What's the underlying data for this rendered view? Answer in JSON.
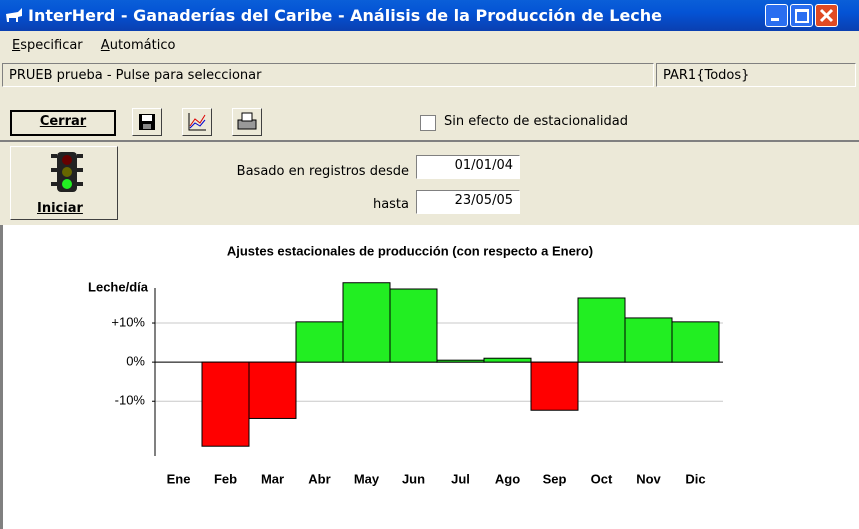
{
  "window": {
    "title": "InterHerd - Ganaderías del Caribe - Análisis de la Producción de Leche"
  },
  "menu": [
    "Especificar",
    "Automático"
  ],
  "status": {
    "selection": "PRUEB prueba - Pulse para seleccionar",
    "parameter": "PAR1{Todos}"
  },
  "toolbar": {
    "close": "Cerrar",
    "checkbox": "Sin efecto de estacionalidad"
  },
  "filter": {
    "start_label": "Basado en registros desde",
    "start": "01/01/04",
    "end_label": "hasta",
    "end": "23/05/05",
    "run": "Iniciar"
  },
  "chart_data": {
    "type": "bar",
    "title": "Ajustes estacionales de producción (con respecto a Enero)",
    "y_label": "Leche/día",
    "categories": [
      "Ene",
      "Feb",
      "Mar",
      "Abr",
      "May",
      "Jun",
      "Jul",
      "Ago",
      "Sep",
      "Oct",
      "Nov",
      "Dic"
    ],
    "values": [
      0,
      -21.5,
      -14.4,
      10.3,
      20.3,
      18.7,
      0.5,
      1.0,
      -12.3,
      16.4,
      11.3,
      10.3
    ],
    "positive_color": "#22ee22",
    "negative_color": "#ff0000",
    "ylim": [
      -24,
      21
    ],
    "yticks": [
      {
        "value": 10,
        "label": "+10%"
      },
      {
        "value": 0,
        "label": "0%"
      },
      {
        "value": -10,
        "label": "-10%"
      }
    ],
    "grid": true
  }
}
